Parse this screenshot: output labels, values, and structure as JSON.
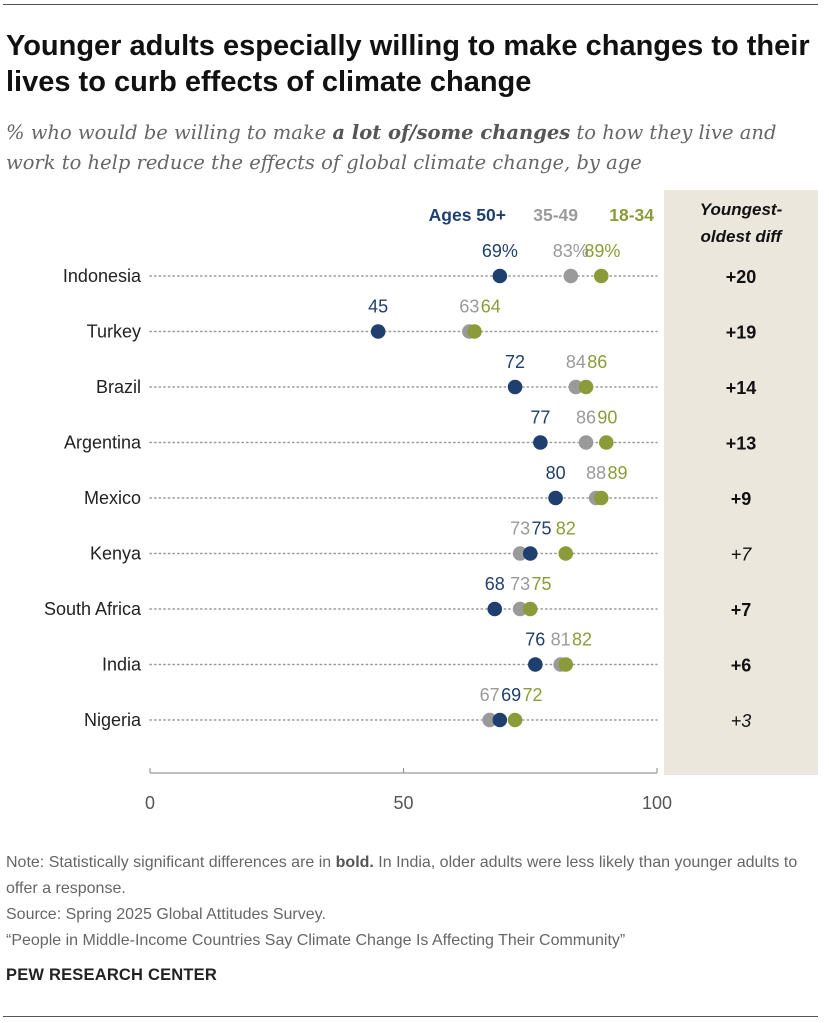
{
  "title": "Younger adults especially willing to make changes to their lives to curb effects of climate change",
  "subtitle": {
    "before": "% who would be willing to make ",
    "bold": "a lot of/some changes",
    "after": " to how they live and work to help reduce the effects of global climate change, by age"
  },
  "colors": {
    "ages_50_plus": "#1f3f6f",
    "ages_35_49": "#9a9a9a",
    "ages_18_34": "#8c9b3a",
    "diff_panel": "#ebe7dd"
  },
  "chart_data": {
    "type": "dot-plot",
    "series": [
      {
        "name": "Ages 50+",
        "key": "o",
        "values": [
          69,
          45,
          72,
          77,
          80,
          75,
          68,
          76,
          69
        ]
      },
      {
        "name": "35-49",
        "key": "m",
        "values": [
          83,
          63,
          84,
          86,
          88,
          73,
          73,
          81,
          67
        ]
      },
      {
        "name": "18-34",
        "key": "y",
        "values": [
          89,
          64,
          86,
          90,
          89,
          82,
          75,
          82,
          72
        ]
      }
    ],
    "categories": [
      "Indonesia",
      "Turkey",
      "Brazil",
      "Argentina",
      "Mexico",
      "Kenya",
      "South Africa",
      "India",
      "Nigeria"
    ],
    "labels": [
      {
        "o": "69%",
        "m": "83%",
        "y": "89%"
      },
      {
        "o": "45",
        "m": "63",
        "y": "64"
      },
      {
        "o": "72",
        "m": "84",
        "y": "86"
      },
      {
        "o": "77",
        "m": "86",
        "y": "90"
      },
      {
        "o": "80",
        "m": "88",
        "y": "89"
      },
      {
        "o": "75",
        "m": "73",
        "y": "82"
      },
      {
        "o": "68",
        "m": "73",
        "y": "75"
      },
      {
        "o": "76",
        "m": "81",
        "y": "82"
      },
      {
        "o": "69",
        "m": "67",
        "y": "72"
      }
    ],
    "diff_header": [
      "Youngest-",
      "oldest diff"
    ],
    "diffs": [
      "+20",
      "+19",
      "+14",
      "+13",
      "+9",
      "+7",
      "+7",
      "+6",
      "+3"
    ],
    "diff_bold": [
      true,
      true,
      true,
      true,
      true,
      false,
      true,
      true,
      false
    ],
    "xlim": [
      0,
      100
    ],
    "xticks": [
      0,
      50,
      100
    ],
    "legend_position": "top-right"
  },
  "note": {
    "line1_before": "Note: Statistically significant differences are in ",
    "line1_bold": "bold.",
    "line1_after": " In India, older adults were less likely than younger adults to offer a response.",
    "source": "Source: Spring 2025 Global Attitudes Survey.",
    "report": "“People in Middle-Income Countries Say Climate Change Is Affecting Their Community”"
  },
  "brand": "PEW RESEARCH CENTER"
}
